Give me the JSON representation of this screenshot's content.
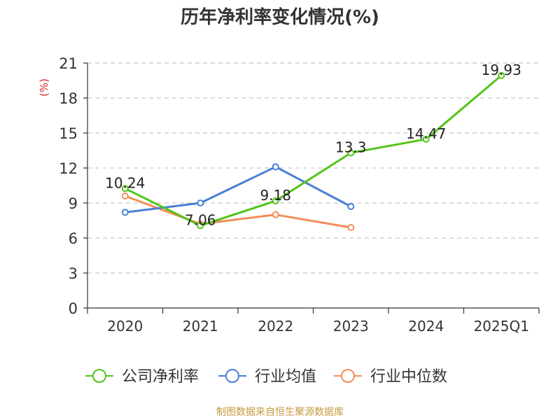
{
  "chart_data": {
    "type": "line",
    "title": "历年净利率变化情况(%)",
    "ylabel": "(%)",
    "xlabel": "",
    "categories": [
      "2020",
      "2021",
      "2022",
      "2023",
      "2024",
      "2025Q1"
    ],
    "ylim": [
      0,
      21
    ],
    "yticks": [
      0,
      3,
      6,
      9,
      12,
      15,
      18,
      21
    ],
    "grid": true,
    "legend_position": "bottom",
    "series": [
      {
        "name": "公司净利率",
        "color": "#52c41a",
        "values": [
          10.24,
          7.06,
          9.18,
          13.3,
          14.47,
          19.93
        ],
        "labels": [
          "10.24",
          "7.06",
          "9.18",
          "13.3",
          "14.47",
          "19.93"
        ]
      },
      {
        "name": "行业均值",
        "color": "#4a7fd6",
        "values": [
          8.2,
          9.0,
          12.1,
          8.7,
          null,
          null
        ]
      },
      {
        "name": "行业中位数",
        "color": "#f38c5a",
        "values": [
          9.6,
          7.2,
          8.0,
          6.9,
          null,
          null
        ]
      }
    ]
  },
  "footer": "制图数据来自恒生聚源数据库"
}
